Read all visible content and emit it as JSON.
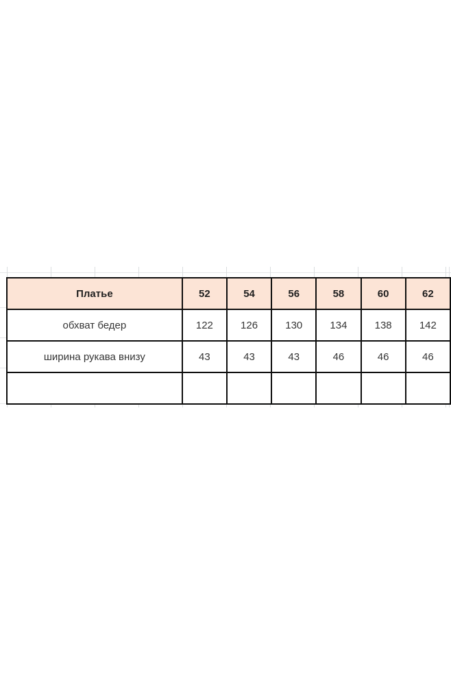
{
  "table": {
    "header": {
      "label": "Платье",
      "sizes": [
        "52",
        "54",
        "56",
        "58",
        "60",
        "62"
      ]
    },
    "rows": [
      {
        "label": "обхват бедер",
        "values": [
          "122",
          "126",
          "130",
          "134",
          "138",
          "142"
        ]
      },
      {
        "label": "ширина рукава внизу",
        "values": [
          "43",
          "43",
          "43",
          "46",
          "46",
          "46"
        ]
      },
      {
        "label": "",
        "values": [
          "",
          "",
          "",
          "",
          "",
          ""
        ]
      }
    ],
    "colors": {
      "header_fill": "#fce4d6",
      "border": "#0d0d0d",
      "header_text": "#1f1f1f",
      "body_text": "#353535",
      "gridline": "#d7dadd",
      "background": "#ffffff"
    }
  }
}
